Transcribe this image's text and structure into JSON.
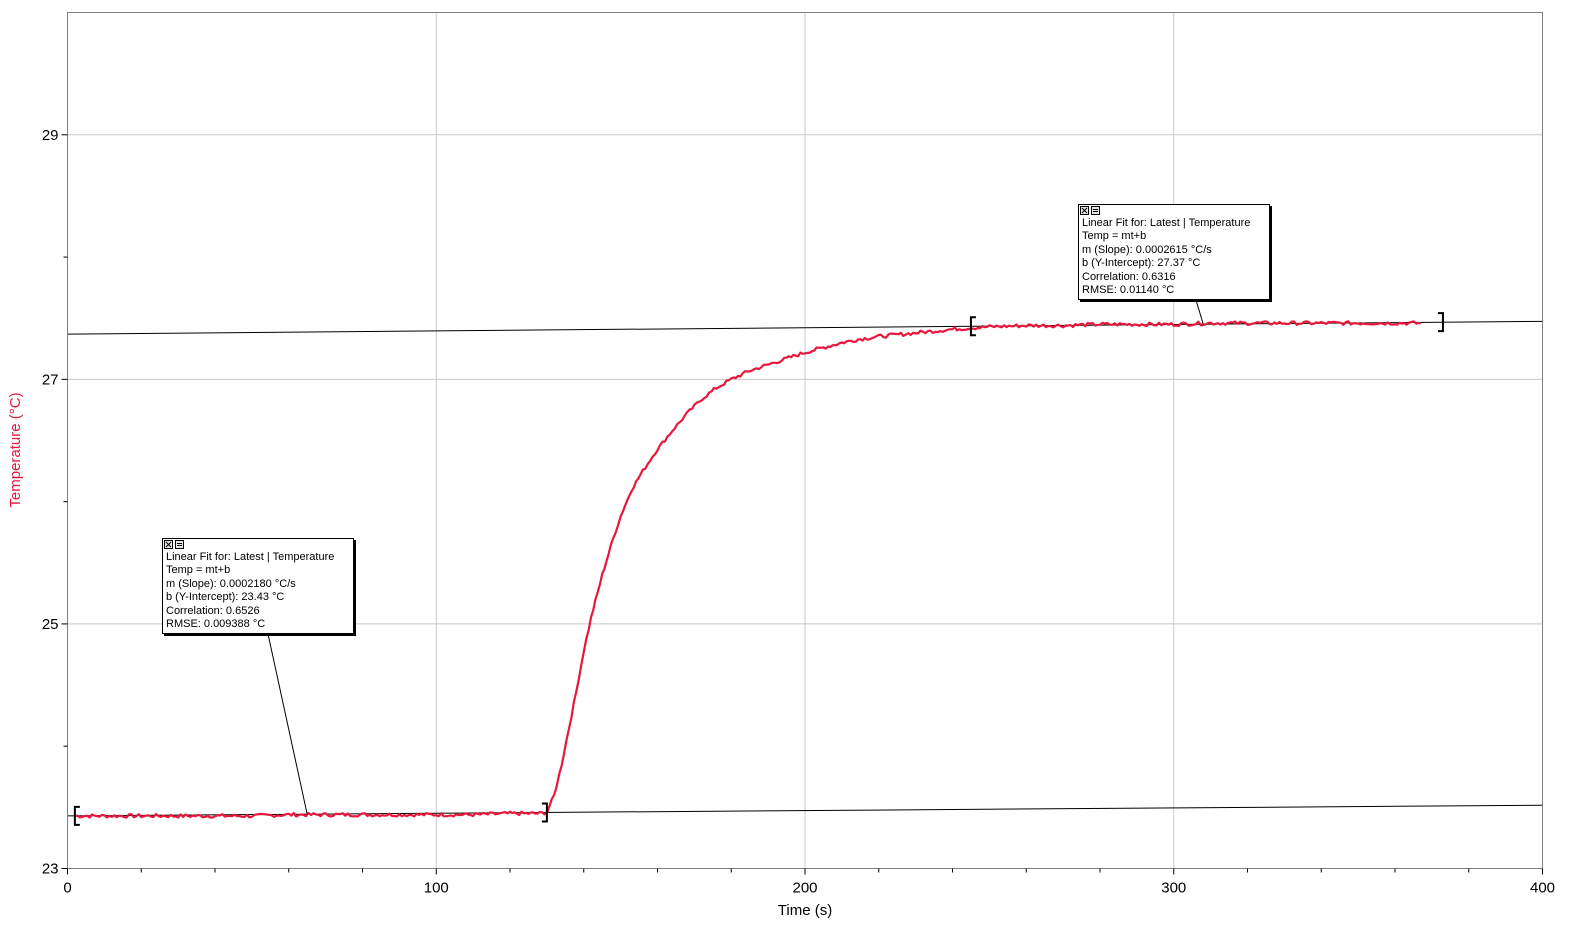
{
  "chart_data": {
    "type": "line",
    "xlabel": "Time (s)",
    "ylabel": "Temperature (°C)",
    "xlim": [
      0,
      400
    ],
    "ylim": [
      23,
      30
    ],
    "x_ticks": [
      0,
      100,
      200,
      300,
      400
    ],
    "y_ticks": [
      23,
      25,
      27,
      29
    ],
    "grid": true,
    "series": [
      {
        "color": "#e8173c",
        "x": [
          2,
          10,
          20,
          30,
          40,
          50,
          60,
          70,
          80,
          90,
          100,
          110,
          120,
          125,
          128,
          130,
          132,
          134,
          136,
          138,
          140,
          142,
          145,
          148,
          150,
          153,
          156,
          160,
          164,
          168,
          172,
          176,
          180,
          185,
          190,
          195,
          200,
          205,
          210,
          215,
          220,
          230,
          240,
          245,
          250,
          260,
          270,
          280,
          290,
          300,
          310,
          320,
          330,
          340,
          350,
          360,
          367
        ],
        "y": [
          23.43,
          23.43,
          23.43,
          23.43,
          23.43,
          23.43,
          23.44,
          23.44,
          23.44,
          23.44,
          23.44,
          23.44,
          23.45,
          23.45,
          23.45,
          23.46,
          23.6,
          23.85,
          24.15,
          24.45,
          24.78,
          25.05,
          25.4,
          25.7,
          25.88,
          26.1,
          26.25,
          26.43,
          26.58,
          26.72,
          26.84,
          26.93,
          27.0,
          27.07,
          27.12,
          27.17,
          27.22,
          27.26,
          27.3,
          27.33,
          27.35,
          27.38,
          27.41,
          27.42,
          27.43,
          27.44,
          27.44,
          27.45,
          27.45,
          27.45,
          27.46,
          27.46,
          27.46,
          27.46,
          27.46,
          27.46,
          27.46
        ]
      }
    ],
    "fits": [
      {
        "x_range": [
          2,
          130
        ],
        "slope": 0.000218,
        "intercept": 23.43,
        "lines": [
          "Linear Fit for: Latest | Temperature",
          "Temp = mt+b",
          "m (Slope): 0.0002180 °C/s",
          "b (Y-Intercept): 23.43 °C",
          "Correlation: 0.6526",
          "RMSE: 0.009388 °C"
        ]
      },
      {
        "x_range": [
          245,
          373
        ],
        "slope": 0.0002615,
        "intercept": 27.37,
        "lines": [
          "Linear Fit for: Latest | Temperature",
          "Temp = mt+b",
          "m (Slope): 0.0002615 °C/s",
          "b (Y-Intercept): 27.37 °C",
          "Correlation: 0.6316",
          "RMSE: 0.01140 °C"
        ]
      }
    ]
  }
}
